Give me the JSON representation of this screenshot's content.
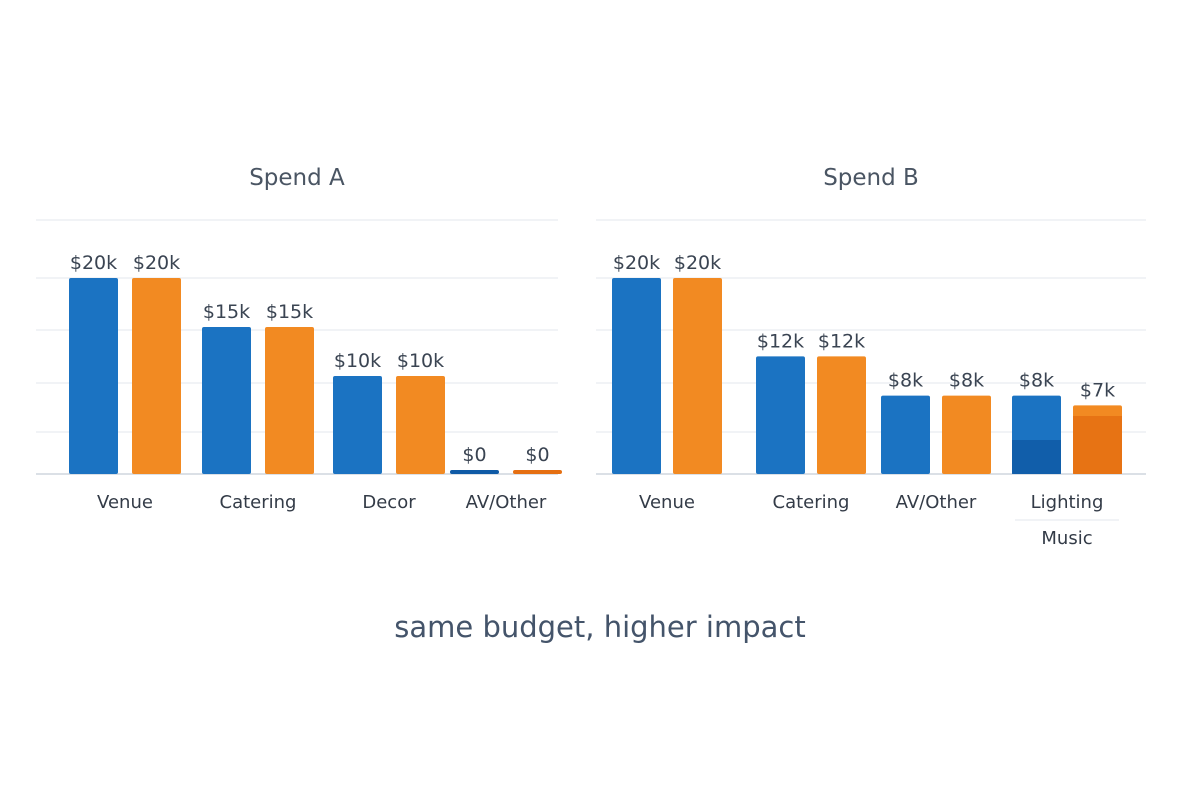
{
  "tagline": "same budget, higher impact",
  "colors": {
    "series_1": "#1b73c2",
    "series_2": "#f28a22",
    "series_1_dark": "#0f5aa6",
    "series_2_dark": "#e56f12"
  },
  "chart_data": [
    {
      "type": "bar",
      "title": "Spend A",
      "categories": [
        "Venue",
        "Catering",
        "Decor",
        "AV/Other"
      ],
      "series": [
        {
          "values": [
            20,
            15,
            10,
            0
          ]
        },
        {
          "values": [
            20,
            15,
            10,
            0
          ]
        }
      ],
      "value_labels": [
        [
          "$20k",
          "$15k",
          "$10k",
          "$0"
        ],
        [
          "$20k",
          "$15k",
          "$10k",
          "$0"
        ]
      ],
      "unit": "$k",
      "ylim": [
        0,
        25
      ],
      "grid": true,
      "legend": "none"
    },
    {
      "type": "bar",
      "title": "Spend B",
      "categories": [
        "Venue",
        "Catering",
        "AV/Other",
        "Lighting"
      ],
      "category_sublabels": [
        "",
        "",
        "",
        "Music"
      ],
      "series": [
        {
          "values": [
            20,
            12,
            8,
            8
          ]
        },
        {
          "values": [
            20,
            12,
            8,
            7
          ]
        }
      ],
      "value_labels": [
        [
          "$20k",
          "$12k",
          "$8k",
          "$8k"
        ],
        [
          "$20k",
          "$12k",
          "$8k",
          "$7k"
        ]
      ],
      "unit": "$k",
      "ylim": [
        0,
        25
      ],
      "grid": true,
      "legend": "none"
    }
  ]
}
